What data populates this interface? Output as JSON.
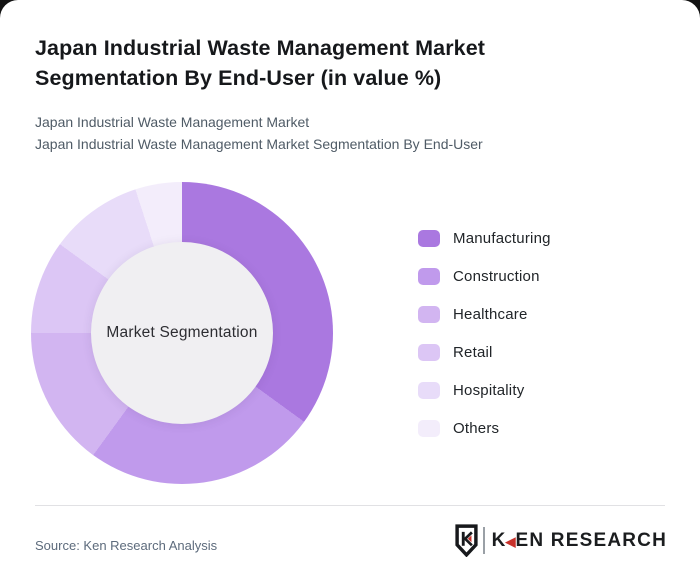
{
  "header": {
    "title": "Japan Industrial Waste Management Market Segmentation By End-User (in value %)",
    "subtitle_line1": "Japan Industrial Waste Management Market",
    "subtitle_line2": "Japan Industrial Waste Management Market Segmentation By End-User"
  },
  "chart_data": {
    "type": "pie",
    "variant": "donut",
    "title": "Japan Industrial Waste Management Market Segmentation By End-User (in value %)",
    "center_label": "Market Segmentation",
    "categories": [
      "Manufacturing",
      "Construction",
      "Healthcare",
      "Retail",
      "Hospitality",
      "Others"
    ],
    "values": [
      35,
      25,
      15,
      10,
      10,
      5
    ],
    "unit": "value %",
    "colors": [
      "#aa78e0",
      "#c09aec",
      "#d2b5f1",
      "#dcc6f5",
      "#e8dcf9",
      "#f3edfb"
    ],
    "hole_color": "#f0eff2",
    "legend_position": "right",
    "start_angle_deg": 0,
    "direction": "clockwise"
  },
  "footer": {
    "source": "Source: Ken Research Analysis",
    "logo_text_k": "K",
    "logo_text_rest": "EN RESEARCH",
    "logo_accent_color": "#c8322b",
    "logo_text_color": "#1b1d1f"
  }
}
